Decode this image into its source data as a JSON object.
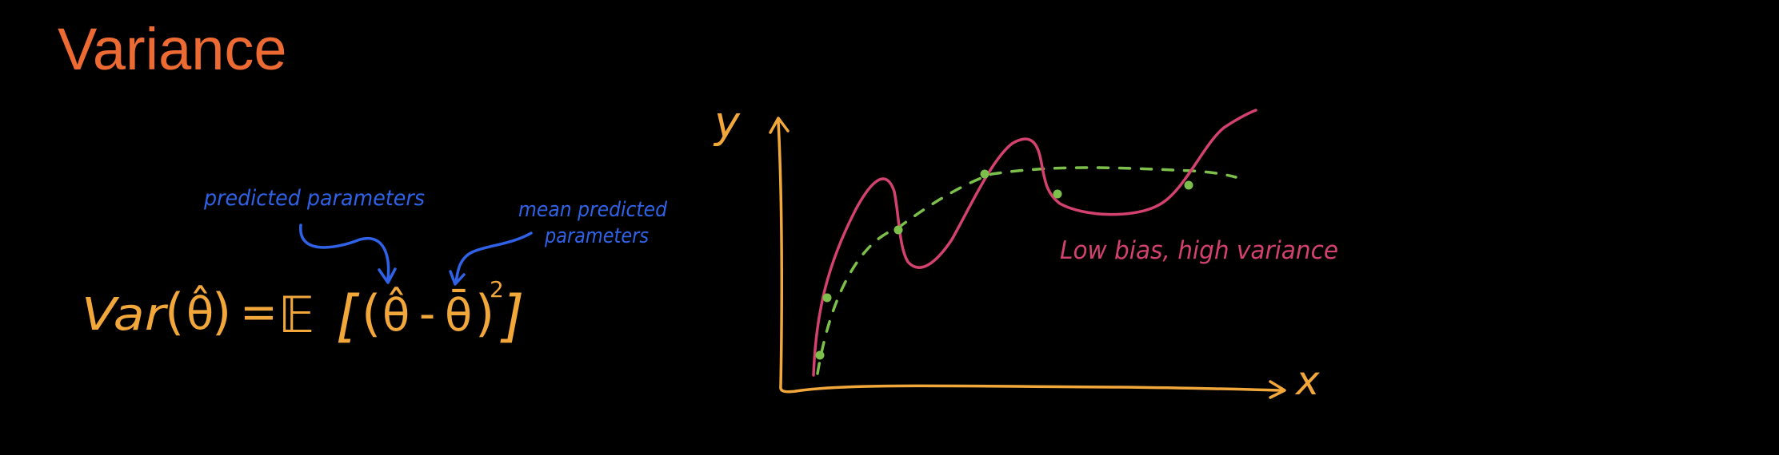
{
  "title": "Variance",
  "formula": {
    "lhs_var": "Var",
    "lhs_open": "(",
    "lhs_theta_hat": "θ̂",
    "lhs_close": ")",
    "equals": "=",
    "expectation": "𝔼",
    "bracket_open": "[",
    "paren_open": "(",
    "theta_hat": "θ̂",
    "minus": "-",
    "theta_bar": "θ̄",
    "paren_close": ")",
    "exponent": "2",
    "bracket_close": "]"
  },
  "annotations": {
    "predicted_parameters": "predicted parameters",
    "mean_predicted_line1": "mean predicted",
    "mean_predicted_line2": "parameters"
  },
  "plot": {
    "y_axis_label": "y",
    "x_axis_label": "x",
    "caption": "Low bias, high variance",
    "colors": {
      "axes": "#f2a73b",
      "model_curve": "#d3416f",
      "true_trend": "#7cc04b",
      "data_points": "#7cc04b",
      "annotation": "#2f62e6",
      "title": "#ee6a33"
    }
  }
}
